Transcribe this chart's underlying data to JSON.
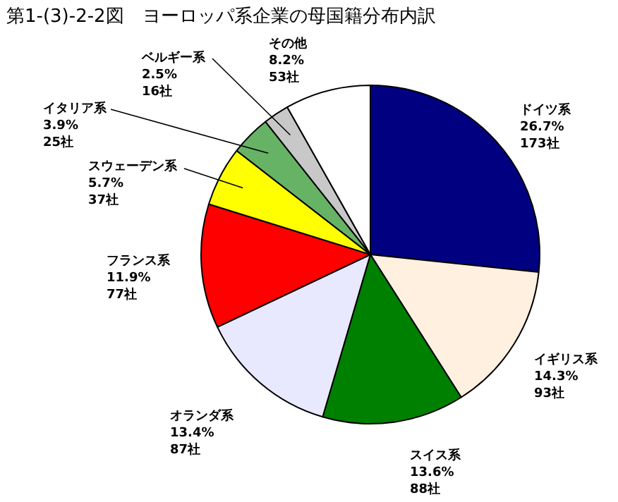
{
  "chart_data": {
    "type": "pie",
    "title": "第1-(3)-2-2図　ヨーロッパ系企業の母国籍分布内訳",
    "categories": [
      "ドイツ系",
      "イギリス系",
      "スイス系",
      "オランダ系",
      "フランス系",
      "スウェーデン系",
      "イタリア系",
      "ベルギー系",
      "その他"
    ],
    "values": [
      173,
      93,
      88,
      87,
      77,
      37,
      25,
      16,
      53
    ],
    "colors": [
      "#000080",
      "#fff0e0",
      "#008000",
      "#e8e8ff",
      "#ff0000",
      "#ffff00",
      "#66b366",
      "#c8c8c8",
      "#ffffff"
    ],
    "value_labels": [
      "26.7%\n173社",
      "14.3%\n93社",
      "13.6%\n88社",
      "13.4%\n87社",
      "11.9%\n77社",
      "5.7%\n37社",
      "3.9%\n25社",
      "2.5%\n16社",
      "8.2%\n53社"
    ]
  }
}
